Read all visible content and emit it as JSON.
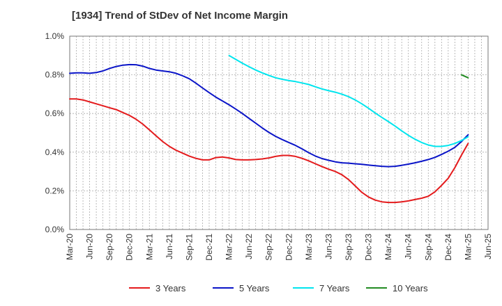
{
  "chart_data": {
    "type": "line",
    "title": "[1934]  Trend of StDev of Net Income Margin",
    "xlabel": "",
    "ylabel": "",
    "x_ticks": [
      "Mar-20",
      "Jun-20",
      "Sep-20",
      "Dec-20",
      "Mar-21",
      "Jun-21",
      "Sep-21",
      "Dec-21",
      "Mar-22",
      "Jun-22",
      "Sep-22",
      "Dec-22",
      "Mar-23",
      "Jun-23",
      "Sep-23",
      "Dec-23",
      "Mar-24",
      "Jun-24",
      "Sep-24",
      "Dec-24",
      "Mar-25",
      "Jun-25"
    ],
    "y_ticks": [
      "0.0%",
      "0.2%",
      "0.4%",
      "0.6%",
      "0.8%",
      "1.0%"
    ],
    "ylim": [
      0,
      1.0
    ],
    "y_unit": "%",
    "grid": true,
    "legend_position": "bottom",
    "series": [
      {
        "name": "3 Years",
        "color": "#e41a1c",
        "points": [
          [
            "Mar-20",
            0.675
          ],
          [
            "Apr-20",
            0.675
          ],
          [
            "May-20",
            0.67
          ],
          [
            "Jun-20",
            0.66
          ],
          [
            "Jul-20",
            0.65
          ],
          [
            "Aug-20",
            0.64
          ],
          [
            "Sep-20",
            0.63
          ],
          [
            "Oct-20",
            0.62
          ],
          [
            "Nov-20",
            0.605
          ],
          [
            "Dec-20",
            0.59
          ],
          [
            "Jan-21",
            0.57
          ],
          [
            "Feb-21",
            0.545
          ],
          [
            "Mar-21",
            0.515
          ],
          [
            "Apr-21",
            0.485
          ],
          [
            "May-21",
            0.455
          ],
          [
            "Jun-21",
            0.43
          ],
          [
            "Jul-21",
            0.41
          ],
          [
            "Aug-21",
            0.395
          ],
          [
            "Sep-21",
            0.38
          ],
          [
            "Oct-21",
            0.368
          ],
          [
            "Nov-21",
            0.36
          ],
          [
            "Dec-21",
            0.36
          ],
          [
            "Jan-22",
            0.372
          ],
          [
            "Feb-22",
            0.375
          ],
          [
            "Mar-22",
            0.37
          ],
          [
            "Apr-22",
            0.362
          ],
          [
            "May-22",
            0.36
          ],
          [
            "Jun-22",
            0.36
          ],
          [
            "Jul-22",
            0.362
          ],
          [
            "Aug-22",
            0.365
          ],
          [
            "Sep-22",
            0.37
          ],
          [
            "Oct-22",
            0.378
          ],
          [
            "Nov-22",
            0.383
          ],
          [
            "Dec-22",
            0.383
          ],
          [
            "Jan-23",
            0.378
          ],
          [
            "Feb-23",
            0.368
          ],
          [
            "Mar-23",
            0.355
          ],
          [
            "Apr-23",
            0.34
          ],
          [
            "May-23",
            0.325
          ],
          [
            "Jun-23",
            0.312
          ],
          [
            "Jul-23",
            0.3
          ],
          [
            "Aug-23",
            0.283
          ],
          [
            "Sep-23",
            0.258
          ],
          [
            "Oct-23",
            0.225
          ],
          [
            "Nov-23",
            0.192
          ],
          [
            "Dec-23",
            0.168
          ],
          [
            "Jan-24",
            0.152
          ],
          [
            "Feb-24",
            0.143
          ],
          [
            "Mar-24",
            0.14
          ],
          [
            "Apr-24",
            0.14
          ],
          [
            "May-24",
            0.143
          ],
          [
            "Jun-24",
            0.148
          ],
          [
            "Jul-24",
            0.155
          ],
          [
            "Aug-24",
            0.162
          ],
          [
            "Sep-24",
            0.172
          ],
          [
            "Oct-24",
            0.195
          ],
          [
            "Nov-24",
            0.228
          ],
          [
            "Dec-24",
            0.265
          ],
          [
            "Jan-25",
            0.32
          ],
          [
            "Feb-25",
            0.385
          ],
          [
            "Mar-25",
            0.445
          ]
        ]
      },
      {
        "name": "5 Years",
        "color": "#0a14c8",
        "points": [
          [
            "Mar-20",
            0.808
          ],
          [
            "Apr-20",
            0.81
          ],
          [
            "May-20",
            0.81
          ],
          [
            "Jun-20",
            0.808
          ],
          [
            "Jul-20",
            0.812
          ],
          [
            "Aug-20",
            0.82
          ],
          [
            "Sep-20",
            0.833
          ],
          [
            "Oct-20",
            0.843
          ],
          [
            "Nov-20",
            0.85
          ],
          [
            "Dec-20",
            0.853
          ],
          [
            "Jan-21",
            0.852
          ],
          [
            "Feb-21",
            0.845
          ],
          [
            "Mar-21",
            0.833
          ],
          [
            "Apr-21",
            0.825
          ],
          [
            "May-21",
            0.82
          ],
          [
            "Jun-21",
            0.816
          ],
          [
            "Jul-21",
            0.808
          ],
          [
            "Aug-21",
            0.795
          ],
          [
            "Sep-21",
            0.78
          ],
          [
            "Oct-21",
            0.757
          ],
          [
            "Nov-21",
            0.732
          ],
          [
            "Dec-21",
            0.708
          ],
          [
            "Jan-22",
            0.685
          ],
          [
            "Feb-22",
            0.665
          ],
          [
            "Mar-22",
            0.645
          ],
          [
            "Apr-22",
            0.623
          ],
          [
            "May-22",
            0.6
          ],
          [
            "Jun-22",
            0.575
          ],
          [
            "Jul-22",
            0.55
          ],
          [
            "Aug-22",
            0.525
          ],
          [
            "Sep-22",
            0.502
          ],
          [
            "Oct-22",
            0.482
          ],
          [
            "Nov-22",
            0.465
          ],
          [
            "Dec-22",
            0.45
          ],
          [
            "Jan-23",
            0.435
          ],
          [
            "Feb-23",
            0.417
          ],
          [
            "Mar-23",
            0.397
          ],
          [
            "Apr-23",
            0.38
          ],
          [
            "May-23",
            0.367
          ],
          [
            "Jun-23",
            0.358
          ],
          [
            "Jul-23",
            0.35
          ],
          [
            "Aug-23",
            0.345
          ],
          [
            "Sep-23",
            0.343
          ],
          [
            "Oct-23",
            0.34
          ],
          [
            "Nov-23",
            0.337
          ],
          [
            "Dec-23",
            0.333
          ],
          [
            "Jan-24",
            0.33
          ],
          [
            "Feb-24",
            0.327
          ],
          [
            "Mar-24",
            0.325
          ],
          [
            "Apr-24",
            0.327
          ],
          [
            "May-24",
            0.332
          ],
          [
            "Jun-24",
            0.338
          ],
          [
            "Jul-24",
            0.345
          ],
          [
            "Aug-24",
            0.353
          ],
          [
            "Sep-24",
            0.362
          ],
          [
            "Oct-24",
            0.373
          ],
          [
            "Nov-24",
            0.388
          ],
          [
            "Dec-24",
            0.405
          ],
          [
            "Jan-25",
            0.425
          ],
          [
            "Feb-25",
            0.455
          ],
          [
            "Mar-25",
            0.49
          ]
        ]
      },
      {
        "name": "7 Years",
        "color": "#00e5ee",
        "points": [
          [
            "Mar-22",
            0.9
          ],
          [
            "Apr-22",
            0.88
          ],
          [
            "May-22",
            0.86
          ],
          [
            "Jun-22",
            0.842
          ],
          [
            "Jul-22",
            0.825
          ],
          [
            "Aug-22",
            0.81
          ],
          [
            "Sep-22",
            0.797
          ],
          [
            "Oct-22",
            0.785
          ],
          [
            "Nov-22",
            0.777
          ],
          [
            "Dec-22",
            0.77
          ],
          [
            "Jan-23",
            0.765
          ],
          [
            "Feb-23",
            0.758
          ],
          [
            "Mar-23",
            0.75
          ],
          [
            "Apr-23",
            0.738
          ],
          [
            "May-23",
            0.727
          ],
          [
            "Jun-23",
            0.718
          ],
          [
            "Jul-23",
            0.71
          ],
          [
            "Aug-23",
            0.7
          ],
          [
            "Sep-23",
            0.687
          ],
          [
            "Oct-23",
            0.67
          ],
          [
            "Nov-23",
            0.65
          ],
          [
            "Dec-23",
            0.627
          ],
          [
            "Jan-24",
            0.603
          ],
          [
            "Feb-24",
            0.58
          ],
          [
            "Mar-24",
            0.558
          ],
          [
            "Apr-24",
            0.535
          ],
          [
            "May-24",
            0.51
          ],
          [
            "Jun-24",
            0.487
          ],
          [
            "Jul-24",
            0.467
          ],
          [
            "Aug-24",
            0.45
          ],
          [
            "Sep-24",
            0.437
          ],
          [
            "Oct-24",
            0.43
          ],
          [
            "Nov-24",
            0.43
          ],
          [
            "Dec-24",
            0.435
          ],
          [
            "Jan-25",
            0.445
          ],
          [
            "Feb-25",
            0.46
          ],
          [
            "Mar-25",
            0.48
          ]
        ]
      },
      {
        "name": "10 Years",
        "color": "#228b22",
        "points": [
          [
            "Feb-25",
            0.8
          ],
          [
            "Mar-25",
            0.785
          ]
        ]
      }
    ]
  }
}
